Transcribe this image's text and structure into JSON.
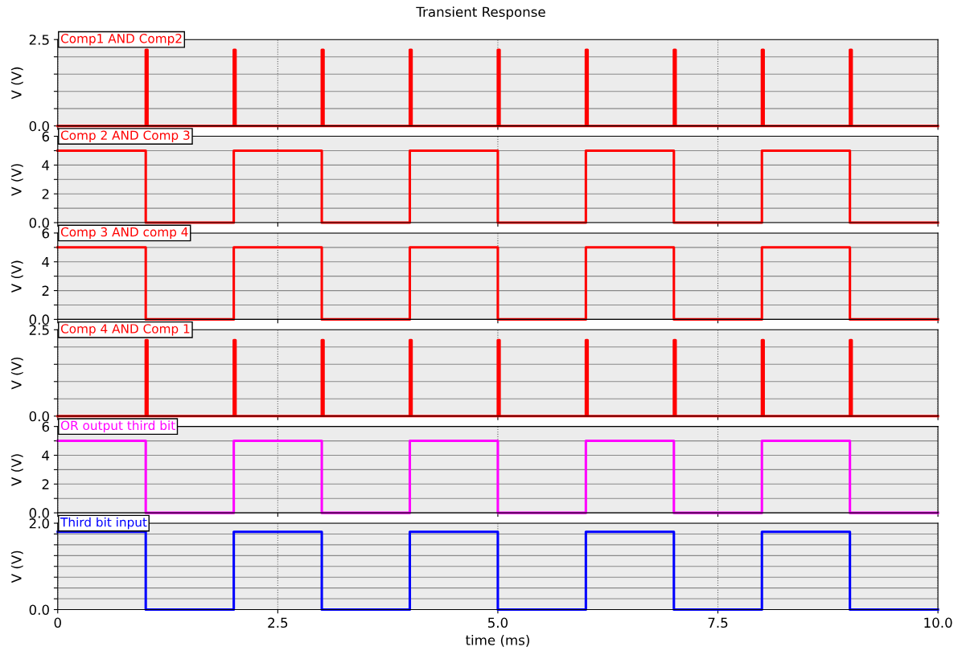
{
  "chart_data": [
    {
      "type": "step",
      "title": "Transient Response",
      "ylabel": "V (V)",
      "xlim": [
        0,
        10
      ],
      "xticks": [
        0,
        2.5,
        5,
        7.5,
        10
      ],
      "ylim": [
        0,
        2.5
      ],
      "yticks": [
        {
          "value": 0,
          "label": "0.0"
        },
        {
          "value": 0.5,
          "label": null
        },
        {
          "value": 1,
          "label": null
        },
        {
          "value": 1.5,
          "label": null
        },
        {
          "value": 2,
          "label": null
        },
        {
          "value": 2.5,
          "label": "2.5"
        }
      ],
      "grid": true,
      "tick_labels": "y",
      "series": [
        {
          "name": "Comp1 AND Comp2",
          "color": "#ff0000",
          "x": [
            0,
            1,
            1.02,
            2,
            2.02,
            3,
            3.02,
            4,
            4.02,
            5,
            5.02,
            6,
            6.02,
            7,
            7.02,
            8,
            8.02,
            9,
            9.02,
            10
          ],
          "values": [
            0,
            2.2,
            0,
            2.2,
            0,
            2.2,
            0,
            2.2,
            0,
            2.2,
            0,
            2.2,
            0,
            2.2,
            0,
            2.2,
            0,
            2.2,
            0,
            0
          ]
        }
      ]
    },
    {
      "type": "step",
      "ylabel": "V (V)",
      "xlim": [
        0,
        10
      ],
      "xticks": [
        0,
        2.5,
        5,
        7.5,
        10
      ],
      "ylim": [
        0,
        6
      ],
      "yticks": [
        {
          "value": 0,
          "label": "0.0"
        },
        {
          "value": 1,
          "label": null
        },
        2,
        {
          "value": 3,
          "label": null
        },
        4,
        {
          "value": 5,
          "label": null
        },
        6
      ],
      "grid": true,
      "tick_labels": "y",
      "series": [
        {
          "name": "Comp 2 AND Comp 3",
          "color": "#ff0000",
          "x": [
            0,
            1,
            2,
            3,
            4,
            5,
            6,
            7,
            8,
            9,
            10
          ],
          "values": [
            5,
            0,
            5,
            0,
            5,
            0,
            5,
            0,
            5,
            0,
            0
          ]
        }
      ]
    },
    {
      "type": "step",
      "ylabel": "V (V)",
      "xlim": [
        0,
        10
      ],
      "xticks": [
        0,
        2.5,
        5,
        7.5,
        10
      ],
      "ylim": [
        0,
        6
      ],
      "yticks": [
        {
          "value": 0,
          "label": "0.0"
        },
        {
          "value": 1,
          "label": null
        },
        2,
        {
          "value": 3,
          "label": null
        },
        4,
        {
          "value": 5,
          "label": null
        },
        6
      ],
      "grid": true,
      "tick_labels": "y",
      "series": [
        {
          "name": "Comp 3 AND comp 4",
          "color": "#ff0000",
          "x": [
            0,
            1,
            2,
            3,
            4,
            5,
            6,
            7,
            8,
            9,
            10
          ],
          "values": [
            5,
            0,
            5,
            0,
            5,
            0,
            5,
            0,
            5,
            0,
            0
          ]
        }
      ]
    },
    {
      "type": "step",
      "ylabel": "V (V)",
      "xlim": [
        0,
        10
      ],
      "xticks": [
        0,
        2.5,
        5,
        7.5,
        10
      ],
      "ylim": [
        0,
        2.5
      ],
      "yticks": [
        {
          "value": 0,
          "label": "0.0"
        },
        {
          "value": 0.5,
          "label": null
        },
        {
          "value": 1,
          "label": null
        },
        {
          "value": 1.5,
          "label": null
        },
        {
          "value": 2,
          "label": null
        },
        {
          "value": 2.5,
          "label": "2.5"
        }
      ],
      "grid": true,
      "tick_labels": "y",
      "series": [
        {
          "name": "Comp 4 AND Comp 1",
          "color": "#ff0000",
          "x": [
            0,
            1,
            1.02,
            2,
            2.02,
            3,
            3.02,
            4,
            4.02,
            5,
            5.02,
            6,
            6.02,
            7,
            7.02,
            8,
            8.02,
            9,
            9.02,
            10
          ],
          "values": [
            0,
            2.2,
            0,
            2.2,
            0,
            2.2,
            0,
            2.2,
            0,
            2.2,
            0,
            2.2,
            0,
            2.2,
            0,
            2.2,
            0,
            2.2,
            0,
            0
          ]
        }
      ]
    },
    {
      "type": "step",
      "ylabel": "V (V)",
      "xlim": [
        0,
        10
      ],
      "xticks": [
        0,
        2.5,
        5,
        7.5,
        10
      ],
      "ylim": [
        0,
        6
      ],
      "yticks": [
        {
          "value": 0,
          "label": "0.0"
        },
        {
          "value": 1,
          "label": null
        },
        2,
        {
          "value": 3,
          "label": null
        },
        4,
        {
          "value": 5,
          "label": null
        },
        6
      ],
      "grid": true,
      "tick_labels": "y",
      "series": [
        {
          "name": "OR output third bit",
          "color": "#ff00ff",
          "x": [
            0,
            1,
            2,
            3,
            4,
            5,
            6,
            7,
            8,
            9,
            10
          ],
          "values": [
            5,
            0,
            5,
            0,
            5,
            0,
            5,
            0,
            5,
            0,
            0
          ]
        }
      ]
    },
    {
      "type": "step",
      "ylabel": "V (V)",
      "xlabel": "time (ms)",
      "xlim": [
        0,
        10
      ],
      "xticks": [
        0,
        2.5,
        {
          "value": 5,
          "label": "5.0"
        },
        7.5,
        {
          "value": 10,
          "label": "10.0"
        }
      ],
      "ylim": [
        0,
        2
      ],
      "yticks": [
        {
          "value": 0,
          "label": "0.0"
        },
        {
          "value": 0.25,
          "label": null
        },
        {
          "value": 0.5,
          "label": null
        },
        {
          "value": 0.75,
          "label": null
        },
        {
          "value": 1,
          "label": null
        },
        {
          "value": 1.25,
          "label": null
        },
        {
          "value": 1.5,
          "label": null
        },
        {
          "value": 1.75,
          "label": null
        },
        {
          "value": 2,
          "label": "2.0"
        }
      ],
      "grid": true,
      "series": [
        {
          "name": "Third bit input",
          "color": "#0000ff",
          "x": [
            0,
            1,
            2,
            3,
            4,
            5,
            6,
            7,
            8,
            9,
            10
          ],
          "values": [
            1.8,
            0,
            1.8,
            0,
            1.8,
            0,
            1.8,
            0,
            1.8,
            0,
            0
          ]
        }
      ]
    }
  ]
}
